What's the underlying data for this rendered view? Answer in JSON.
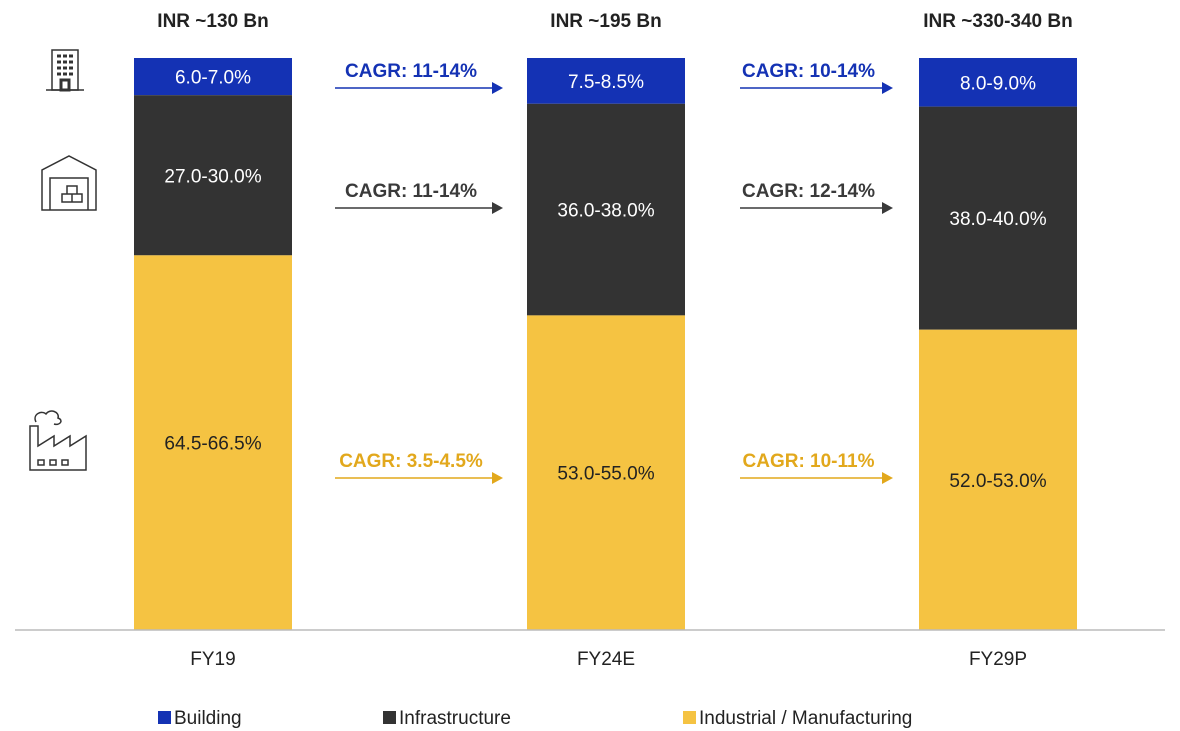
{
  "chart_data": {
    "type": "stacked_bar",
    "totals": [
      "INR ~130 Bn",
      "INR ~195 Bn",
      "INR ~330-340 Bn"
    ],
    "categories": [
      "FY19",
      "FY24E",
      "FY29P"
    ],
    "ylim": [
      0,
      100
    ],
    "series": [
      {
        "name": "Building",
        "color": "#1432b4",
        "cagr_color": "#1432b4",
        "values": [
          6.5,
          8.0,
          8.5
        ],
        "value_labels": [
          "6.0-7.0%",
          "7.5-8.5%",
          "8.0-9.0%"
        ],
        "cagr_labels": [
          "CAGR: 11-14%",
          "CAGR: 10-14%"
        ]
      },
      {
        "name": "Infrastructure",
        "color": "#333333",
        "cagr_color": "#3a3a3a",
        "values": [
          28.0,
          37.0,
          39.0
        ],
        "value_labels": [
          "27.0-30.0%",
          "36.0-38.0%",
          "38.0-40.0%"
        ],
        "cagr_labels": [
          "CAGR: 11-14%",
          "CAGR: 12-14%"
        ]
      },
      {
        "name": "Industrial / Manufacturing",
        "color": "#f5c342",
        "cagr_color": "#e2a81c",
        "values": [
          65.5,
          55.0,
          52.5
        ],
        "value_labels": [
          "64.5-66.5%",
          "53.0-55.0%",
          "52.0-53.0%"
        ],
        "cagr_labels": [
          "CAGR: 3.5-4.5%",
          "CAGR: 10-11%"
        ]
      }
    ]
  }
}
